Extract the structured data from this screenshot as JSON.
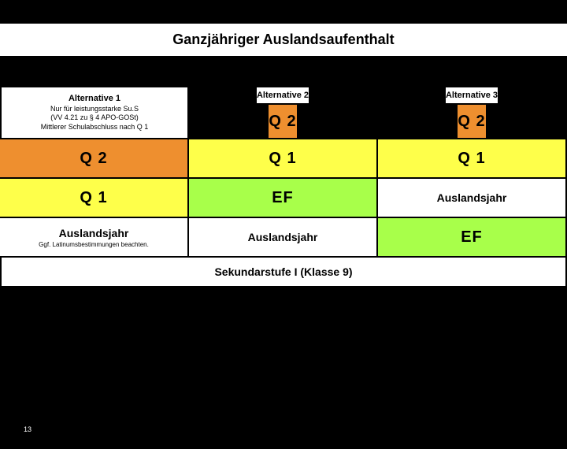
{
  "title": "Ganzjähriger Auslandsaufenthalt",
  "page_number": "13",
  "footer": "Sekundarstufe I (Klasse 9)",
  "colors": {
    "q2": "#ee8f2f",
    "q1": "#feff4a",
    "ef": "#a8ff4a",
    "white": "#ffffff",
    "black": "#000000"
  },
  "alt1": {
    "title": "Alternative 1",
    "line1": "Nur für leistungsstarke Su.S",
    "line2": "(VV 4.21 zu § 4 APO-GOSt)",
    "line3": "Mittlerer Schulabschluss nach Q 1",
    "row2": "Q 2",
    "row3": "Q 1",
    "row4_title": "Auslandsjahr",
    "row4_sub": "Ggf. Latinumsbestimmungen beachten."
  },
  "alt2": {
    "title": "Alternative 2",
    "q2": "Q 2",
    "q1": "Q 1",
    "ef": "EF",
    "aus": "Auslandsjahr"
  },
  "alt3": {
    "title": "Alternative 3",
    "q2": "Q 2",
    "q1": "Q 1",
    "aus": "Auslandsjahr",
    "ef": "EF"
  }
}
